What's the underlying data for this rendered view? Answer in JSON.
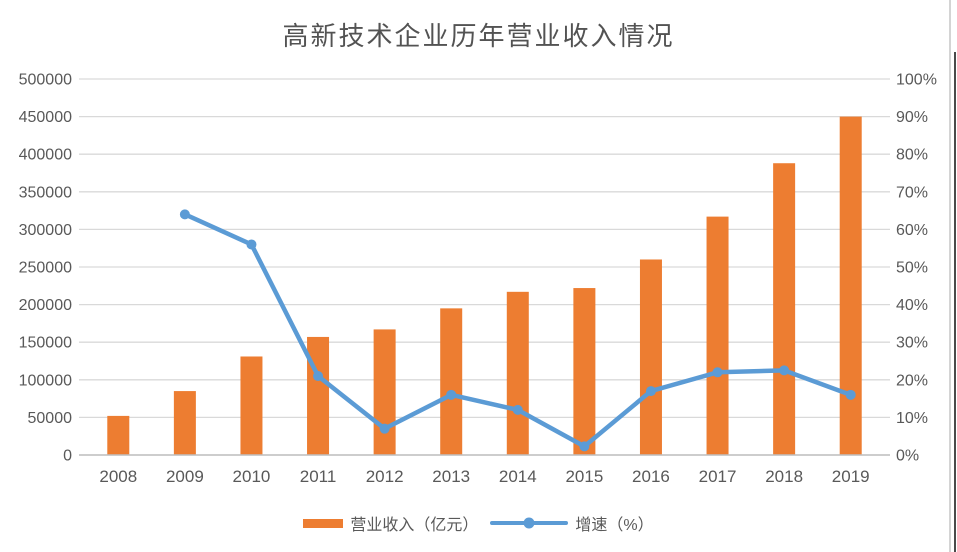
{
  "chart_data": {
    "type": "combo-bar-line",
    "title": "高新技术企业历年营业收入情况",
    "categories": [
      "2008",
      "2009",
      "2010",
      "2011",
      "2012",
      "2013",
      "2014",
      "2015",
      "2016",
      "2017",
      "2018",
      "2019"
    ],
    "series": [
      {
        "name": "营业收入（亿元）",
        "type": "bar",
        "axis": "left",
        "color": "#ED7D31",
        "values": [
          52000,
          85000,
          131000,
          157000,
          167000,
          195000,
          217000,
          222000,
          260000,
          317000,
          388000,
          450000
        ]
      },
      {
        "name": "增速（%）",
        "type": "line",
        "axis": "right",
        "color": "#5B9BD5",
        "values": [
          null,
          64,
          56,
          21,
          7,
          16,
          12,
          2.3,
          17,
          22,
          22.5,
          16
        ]
      }
    ],
    "left_axis": {
      "min": 0,
      "max": 500000,
      "tick_step": 50000,
      "ticks": [
        "0",
        "50000",
        "100000",
        "150000",
        "200000",
        "250000",
        "300000",
        "350000",
        "400000",
        "450000",
        "500000"
      ]
    },
    "right_axis": {
      "min": 0,
      "max": 100,
      "tick_step": 10,
      "ticks": [
        "0%",
        "10%",
        "20%",
        "30%",
        "40%",
        "50%",
        "60%",
        "70%",
        "80%",
        "90%",
        "100%"
      ]
    },
    "grid": "horizontal",
    "legend_position": "bottom"
  },
  "legend": {
    "items": [
      {
        "label": "营业收入（亿元）",
        "swatch": "bar",
        "color": "#ED7D31"
      },
      {
        "label": "增速（%）",
        "swatch": "line",
        "color": "#5B9BD5"
      }
    ]
  },
  "colors": {
    "bar": "#ED7D31",
    "line": "#5B9BD5",
    "grid": "#D9D9D9",
    "axis_line": "#BFBFBF",
    "tick_text": "#595959",
    "title_text": "#535353",
    "edge_dark": "#4A4A4A",
    "edge_light": "#D4D4D4"
  }
}
